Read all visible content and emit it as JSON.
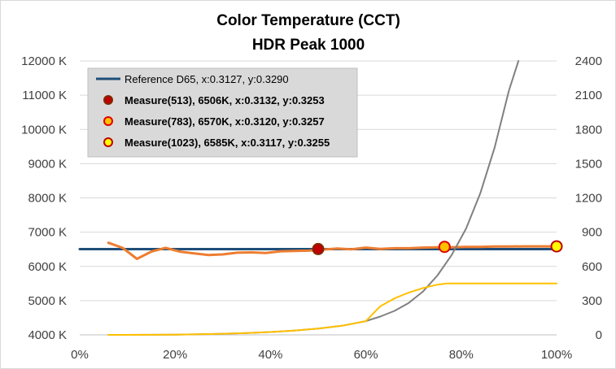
{
  "chart_data": {
    "type": "line",
    "title": "Color Temperature (CCT)",
    "subtitle": "HDR Peak 1000",
    "xlabel": "",
    "ylabel": "",
    "y2label": "",
    "xlim": [
      0,
      100
    ],
    "ylim": [
      4000,
      12000
    ],
    "y2lim": [
      0,
      2400
    ],
    "x_ticks": [
      "0%",
      "20%",
      "40%",
      "60%",
      "80%",
      "100%"
    ],
    "y_ticks": [
      "4000 K",
      "5000 K",
      "6000 K",
      "7000 K",
      "8000 K",
      "9000 K",
      "10000 K",
      "11000 K",
      "12000 K"
    ],
    "y2_ticks": [
      "0",
      "300",
      "600",
      "900",
      "1200",
      "1500",
      "1800",
      "2100",
      "2400"
    ],
    "grid": "horizontal",
    "legend_position": "top-left",
    "legend": [
      {
        "label": "Reference D65, x:0.3127, y:0.3290",
        "marker": "line",
        "color": "#1f4e79",
        "bold": false
      },
      {
        "label": "Measure(513), 6506K, x:0.3132, y:0.3253",
        "marker": "circle",
        "fill": "#c00000",
        "stroke": "#7f2a00",
        "bold": true
      },
      {
        "label": "Measure(783), 6570K, x:0.3120, y:0.3257",
        "marker": "circle",
        "fill": "#ffc000",
        "stroke": "#e00000",
        "bold": true
      },
      {
        "label": "Measure(1023), 6585K, x:0.3117, y:0.3255",
        "marker": "circle",
        "fill": "#ffff00",
        "stroke": "#c00000",
        "bold": true
      }
    ],
    "series": [
      {
        "name": "Reference D65, x:0.3127, y:0.3290",
        "axis": "left",
        "color": "#1f4e79",
        "width": 3,
        "points": [
          [
            0,
            6504
          ],
          [
            100,
            6504
          ]
        ]
      },
      {
        "name": "",
        "axis": "left",
        "color": "#ed7d31",
        "width": 3,
        "points": [
          [
            6,
            6690
          ],
          [
            9,
            6540
          ],
          [
            12,
            6220
          ],
          [
            15,
            6430
          ],
          [
            18,
            6540
          ],
          [
            21,
            6430
          ],
          [
            24,
            6380
          ],
          [
            27,
            6330
          ],
          [
            30,
            6350
          ],
          [
            33,
            6400
          ],
          [
            36,
            6410
          ],
          [
            39,
            6390
          ],
          [
            42,
            6440
          ],
          [
            45,
            6450
          ],
          [
            48,
            6460
          ],
          [
            51,
            6490
          ],
          [
            54,
            6520
          ],
          [
            57,
            6500
          ],
          [
            60,
            6550
          ],
          [
            63,
            6510
          ],
          [
            66,
            6530
          ],
          [
            69,
            6530
          ],
          [
            72,
            6550
          ],
          [
            75,
            6560
          ],
          [
            78,
            6560
          ],
          [
            81,
            6570
          ],
          [
            84,
            6570
          ],
          [
            87,
            6580
          ],
          [
            90,
            6580
          ],
          [
            93,
            6585
          ],
          [
            96,
            6585
          ],
          [
            100,
            6585
          ]
        ]
      },
      {
        "name": "",
        "axis": "right",
        "color": "#808080",
        "width": 2,
        "points": [
          [
            6,
            0
          ],
          [
            10,
            0
          ],
          [
            15,
            1
          ],
          [
            20,
            2
          ],
          [
            25,
            5
          ],
          [
            30,
            10
          ],
          [
            35,
            16
          ],
          [
            40,
            25
          ],
          [
            45,
            38
          ],
          [
            50,
            55
          ],
          [
            55,
            80
          ],
          [
            60,
            120
          ],
          [
            63,
            160
          ],
          [
            66,
            210
          ],
          [
            69,
            280
          ],
          [
            72,
            380
          ],
          [
            75,
            520
          ],
          [
            78,
            700
          ],
          [
            81,
            930
          ],
          [
            84,
            1240
          ],
          [
            87,
            1640
          ],
          [
            90,
            2140
          ],
          [
            92,
            2400
          ]
        ]
      },
      {
        "name": "",
        "axis": "right",
        "color": "#ffc000",
        "width": 2,
        "points": [
          [
            6,
            0
          ],
          [
            10,
            0
          ],
          [
            15,
            1
          ],
          [
            20,
            2
          ],
          [
            25,
            5
          ],
          [
            30,
            10
          ],
          [
            35,
            16
          ],
          [
            40,
            25
          ],
          [
            45,
            38
          ],
          [
            50,
            55
          ],
          [
            55,
            80
          ],
          [
            60,
            120
          ],
          [
            63,
            250
          ],
          [
            66,
            320
          ],
          [
            69,
            370
          ],
          [
            72,
            410
          ],
          [
            75,
            440
          ],
          [
            77,
            450
          ],
          [
            80,
            450
          ],
          [
            85,
            450
          ],
          [
            90,
            450
          ],
          [
            95,
            450
          ],
          [
            100,
            450
          ]
        ]
      }
    ],
    "markers": [
      {
        "name": "Measure(513), 6506K, x:0.3132, y:0.3253",
        "x": 50,
        "y": 6506,
        "fill": "#c00000",
        "stroke": "#7f2a00"
      },
      {
        "name": "Measure(783), 6570K, x:0.3120, y:0.3257",
        "x": 76.5,
        "y": 6570,
        "fill": "#ffc000",
        "stroke": "#e00000"
      },
      {
        "name": "Measure(1023), 6585K, x:0.3117, y:0.3255",
        "x": 100,
        "y": 6585,
        "fill": "#ffff00",
        "stroke": "#c00000"
      }
    ]
  }
}
